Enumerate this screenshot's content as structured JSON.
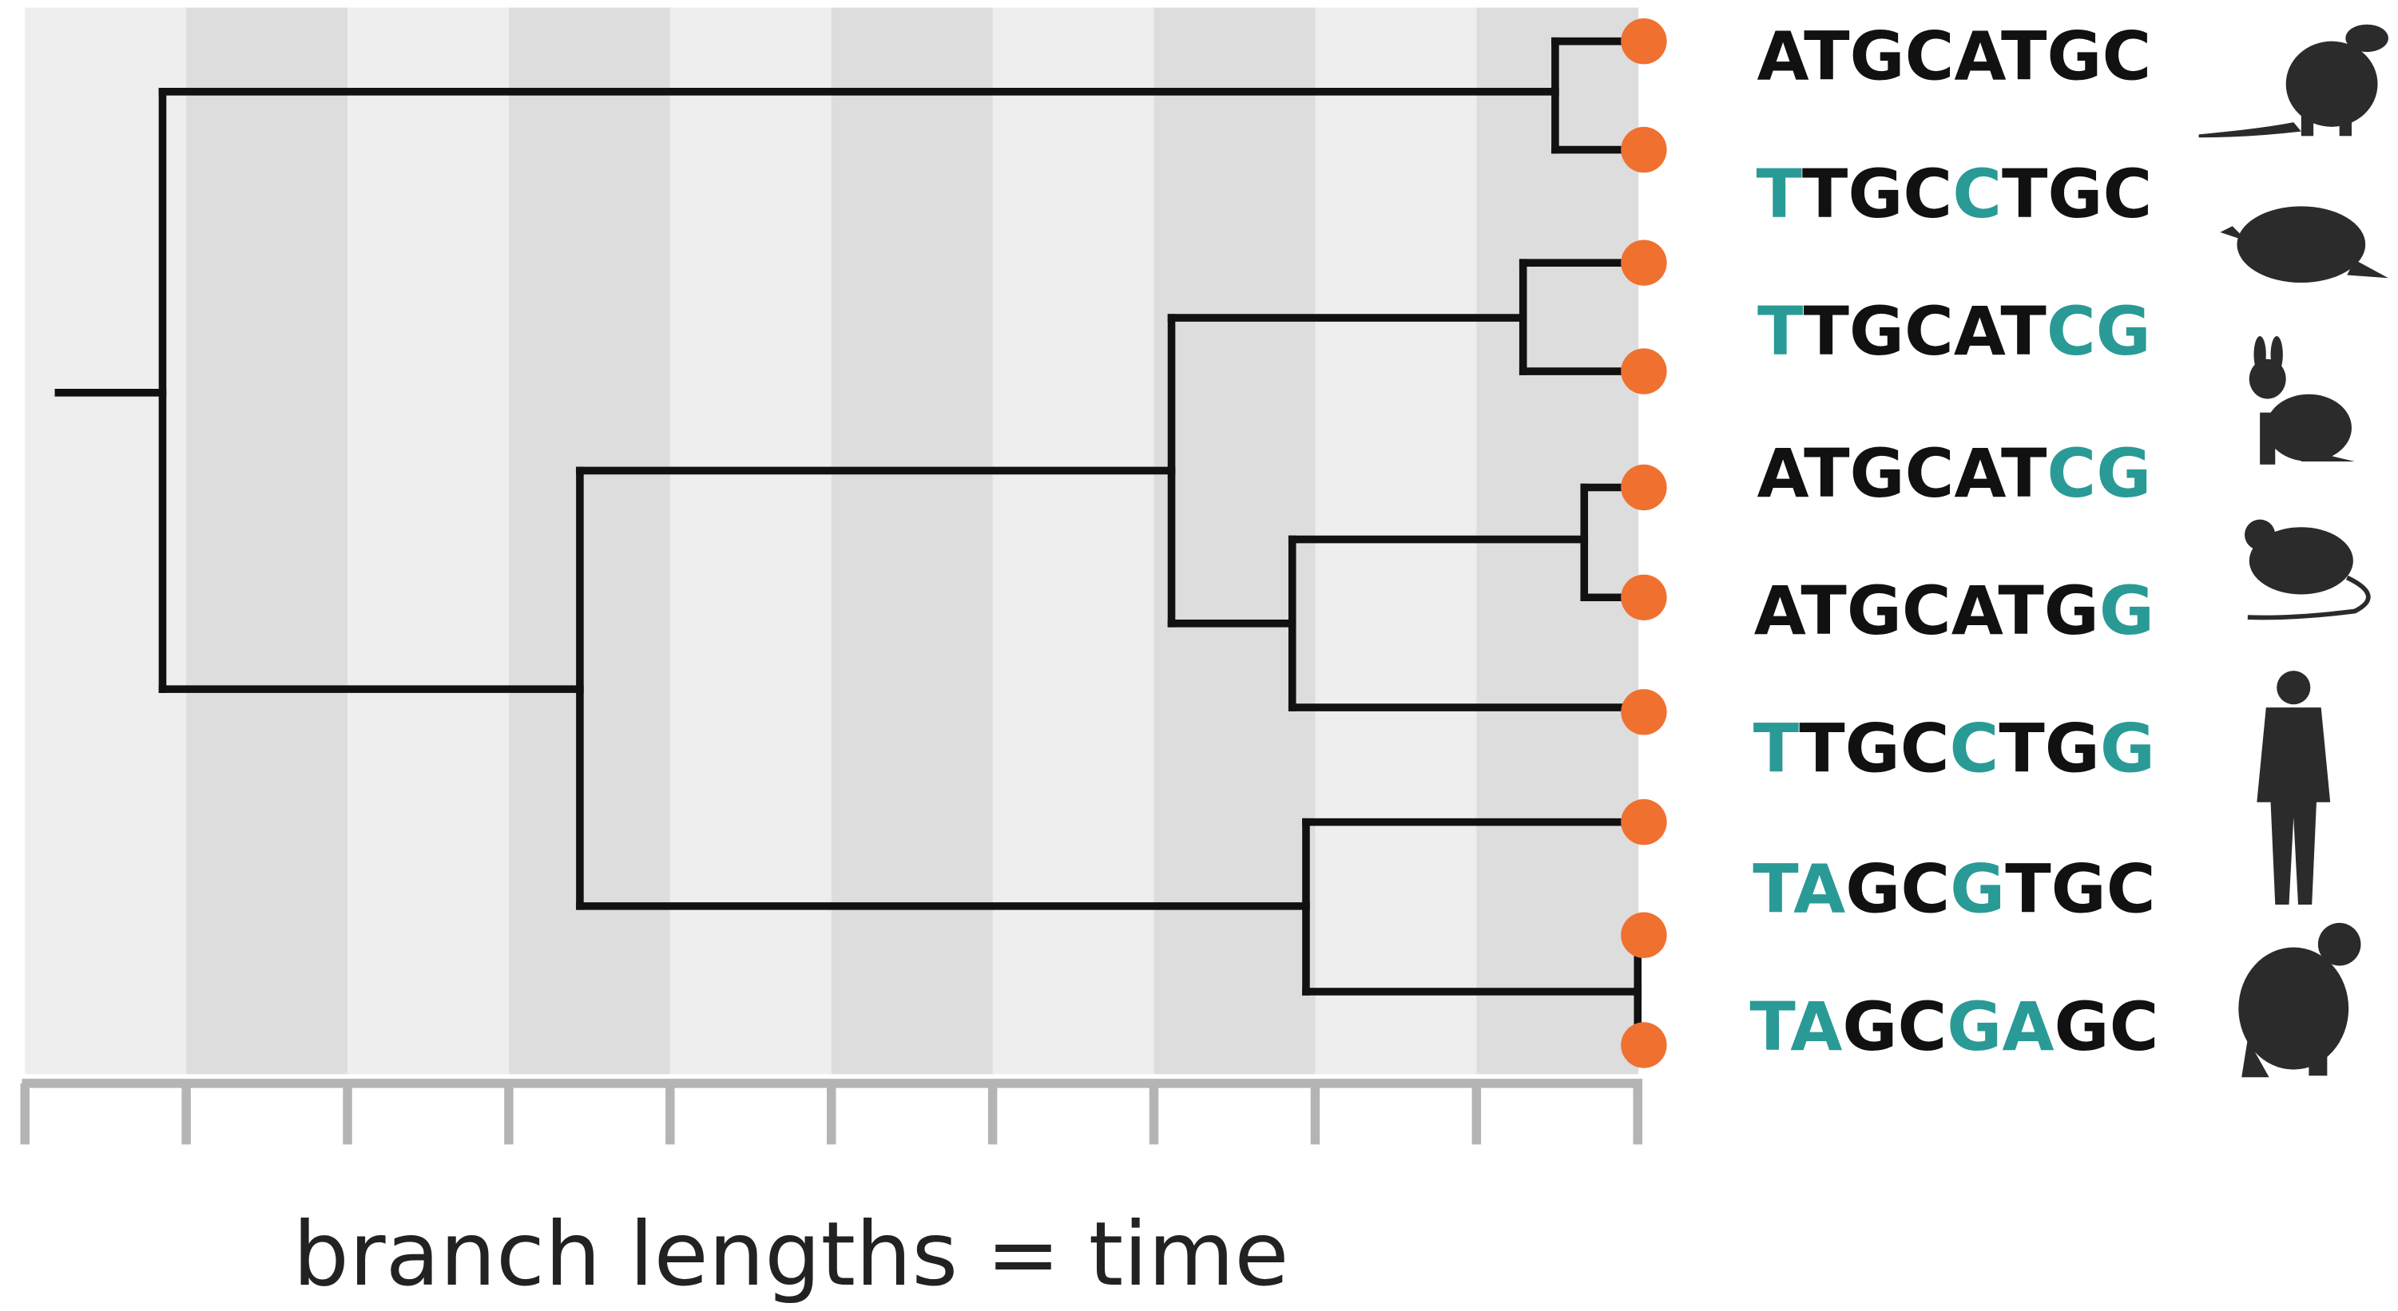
{
  "tips": [
    {
      "segments": [
        {
          "text": "ATGCATGC",
          "color": "#111111"
        }
      ]
    },
    {
      "segments": [
        {
          "text": "T",
          "color": "#2a9a96"
        },
        {
          "text": "TGC",
          "color": "#111111"
        },
        {
          "text": "C",
          "color": "#2a9a96"
        },
        {
          "text": "TGC",
          "color": "#111111"
        }
      ]
    },
    {
      "segments": [
        {
          "text": "T",
          "color": "#2a9a96"
        },
        {
          "text": "TGCAT",
          "color": "#111111"
        },
        {
          "text": "CG",
          "color": "#2a9a96"
        }
      ]
    },
    {
      "segments": [
        {
          "text": "ATGCAT",
          "color": "#111111"
        },
        {
          "text": "CG",
          "color": "#2a9a96"
        }
      ]
    },
    {
      "segments": [
        {
          "text": "ATGCATG",
          "color": "#111111"
        },
        {
          "text": "G",
          "color": "#2a9a96"
        }
      ]
    },
    {
      "segments": [
        {
          "text": "T",
          "color": "#2a9a96"
        },
        {
          "text": "TGC",
          "color": "#111111"
        },
        {
          "text": "C",
          "color": "#2a9a96"
        },
        {
          "text": "TG",
          "color": "#111111"
        },
        {
          "text": "G",
          "color": "#2a9a96"
        }
      ]
    },
    {
      "segments": [
        {
          "text": "TA",
          "color": "#2a9a96"
        },
        {
          "text": "GC",
          "color": "#111111"
        },
        {
          "text": "G",
          "color": "#2a9a96"
        },
        {
          "text": "TGC",
          "color": "#111111"
        }
      ]
    },
    {
      "segments": [
        {
          "text": "TA",
          "color": "#2a9a96"
        },
        {
          "text": "GC",
          "color": "#111111"
        },
        {
          "text": "GA",
          "color": "#2a9a96"
        },
        {
          "text": "GC",
          "color": "#111111"
        }
      ]
    }
  ],
  "axis_label": "branch lengths = time"
}
